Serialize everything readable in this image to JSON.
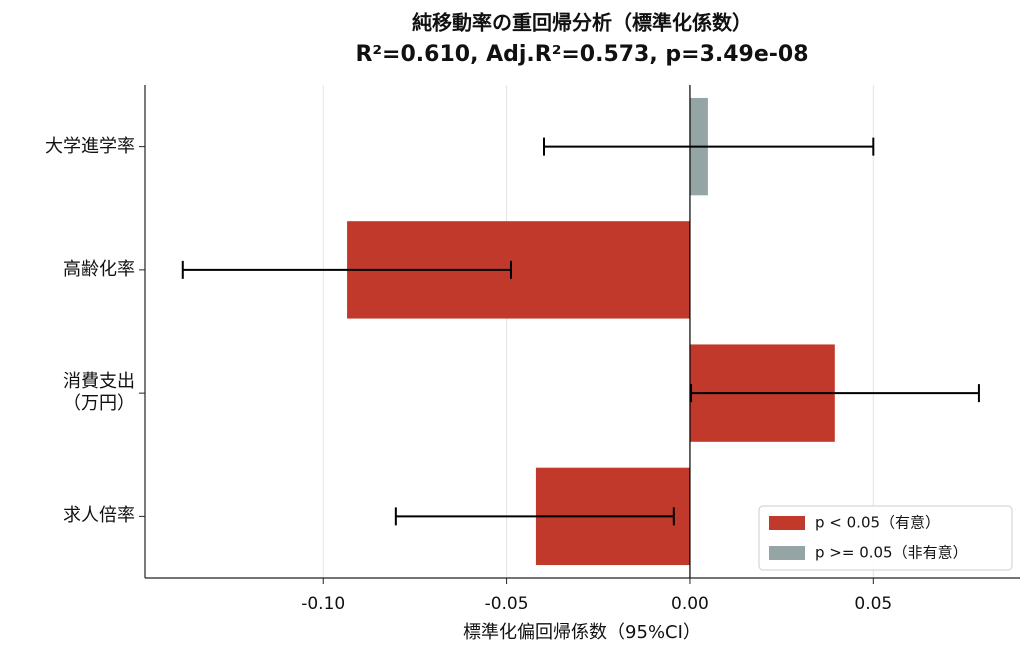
{
  "chart_data": {
    "type": "bar",
    "orientation": "horizontal",
    "title": "純移動率の重回帰分析（標準化係数）",
    "subtitle": "R²=0.610, Adj.R²=0.573, p=3.49e-08",
    "x_label": "標準化偏回帰係数（95%CI）",
    "categories": [
      "大学進学率",
      "高齢化率",
      "消費支出\n（万円）",
      "求人倍率"
    ],
    "values": [
      0.0049,
      -0.0935,
      0.0395,
      -0.042
    ],
    "colors": [
      "#95a5a6",
      "#c0392b",
      "#c0392b",
      "#c0392b"
    ],
    "ci": [
      [
        -0.0398,
        0.05
      ],
      [
        -0.1383,
        -0.0488
      ],
      [
        0.0003,
        0.0788
      ],
      [
        -0.0802,
        -0.0044
      ]
    ],
    "legend": [
      {
        "name": "p < 0.05（有意）",
        "color": "#c0392b"
      },
      {
        "name": "p >= 0.05（非有意）",
        "color": "#95a5a6"
      }
    ],
    "legend_position": "lower right",
    "xlim": [
      -0.1486,
      0.09
    ],
    "xticks": [
      {
        "value": -0.1,
        "label": "-0.10"
      },
      {
        "value": -0.05,
        "label": "-0.05"
      },
      {
        "value": 0,
        "label": "0.00"
      },
      {
        "value": 0.05,
        "label": "0.05"
      }
    ],
    "grid": true
  }
}
